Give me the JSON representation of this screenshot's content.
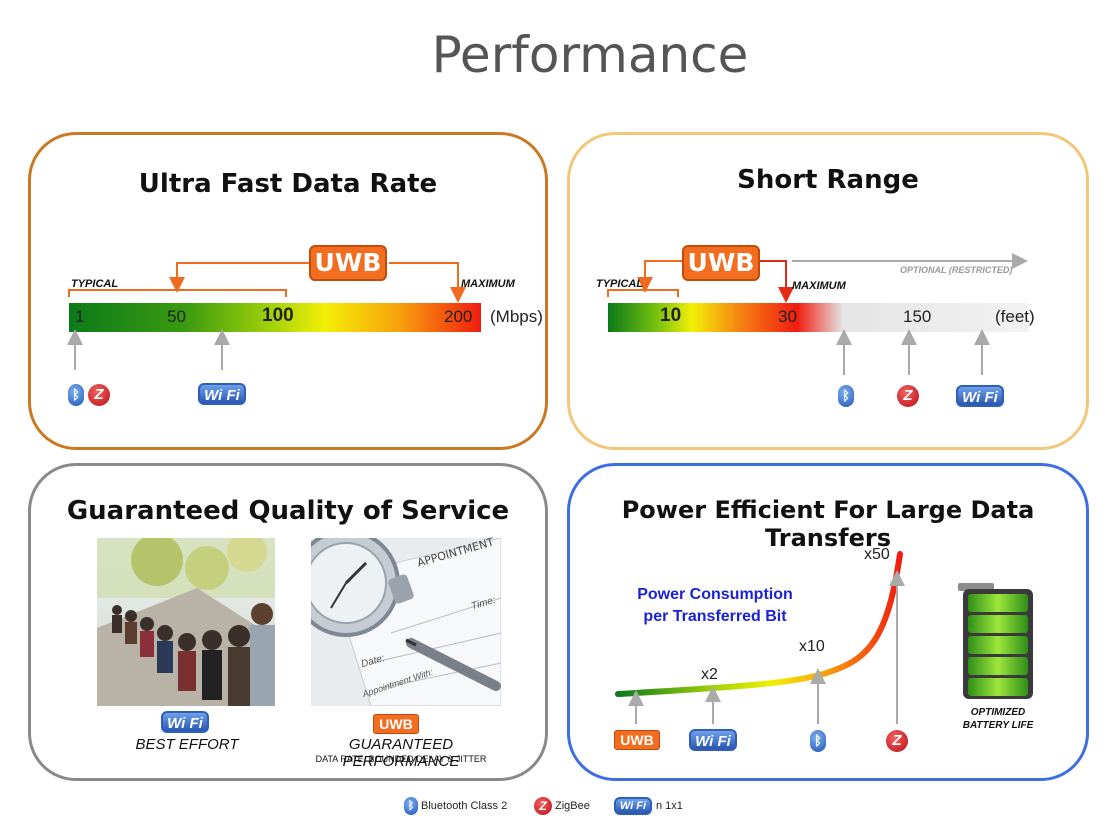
{
  "page_title": "Performance",
  "panel1": {
    "title": "Ultra Fast Data Rate",
    "uwb_label": "UWB",
    "typical_label": "TYPICAL",
    "maximum_label": "MAXIMUM",
    "bar_values": [
      "1",
      "50",
      "100",
      "200"
    ],
    "unit": "(Mbps)"
  },
  "panel2": {
    "title": "Short Range",
    "uwb_label": "UWB",
    "typical_label": "TYPICAL",
    "maximum_label": "MAXIMUM",
    "optional_label": "OPTIONAL (RESTRICTED)",
    "bar_values": [
      "10",
      "30",
      "150"
    ],
    "unit": "(feet)"
  },
  "panel3": {
    "title": "Guaranteed Quality of Service",
    "left_caption": "BEST EFFORT",
    "uwb_label": "UWB",
    "right_caption": "GUARANTEED PERFORMANCE",
    "right_subcaption": "DATA RATE, BOUNDED DELAY & JITTER",
    "photo_appointment": "APPOINTMENT",
    "photo_time": "Time:",
    "photo_date": "Date:",
    "photo_with": "Appointment With:"
  },
  "panel4": {
    "title": "Power Efficient For Large Data Transfers",
    "curve_label_line1": "Power Consumption",
    "curve_label_line2": "per Transferred Bit",
    "multipliers": [
      "x2",
      "x10",
      "x50"
    ],
    "uwb_label": "UWB",
    "battery_label_line1": "OPTIMIZED",
    "battery_label_line2": "BATTERY LIFE"
  },
  "icons": {
    "wifi_text": "Wi Fi",
    "bluetooth_glyph": "ᛒ",
    "zigbee_glyph": "Z"
  },
  "legend": {
    "bluetooth": "Bluetooth Class 2",
    "zigbee": "ZigBee",
    "wifi": "n 1x1"
  },
  "colors": {
    "uwb_orange": "#f26d1f",
    "panel1_border": "#c77a22",
    "panel2_border": "#f3c77a",
    "panel3_border": "#8a8a8a",
    "panel4_border": "#3d6fe0",
    "curve_text_blue": "#1a22d6"
  }
}
